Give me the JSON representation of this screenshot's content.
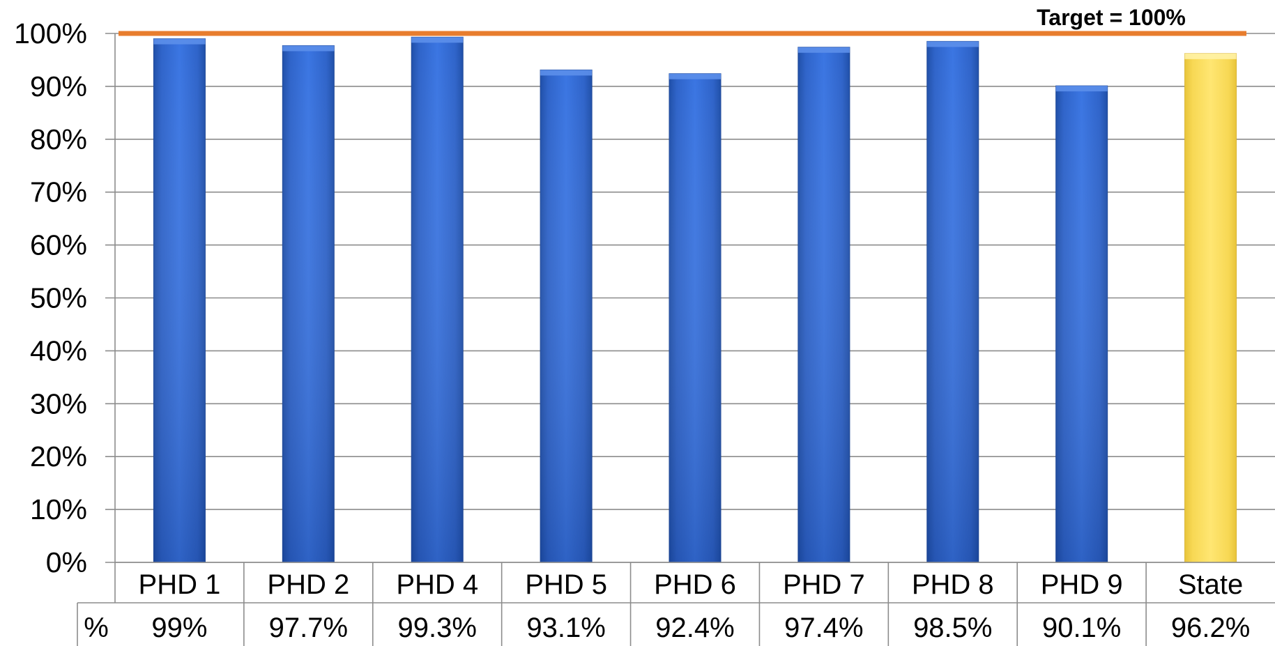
{
  "chart_data": {
    "type": "bar",
    "categories": [
      "PHD 1",
      "PHD 2",
      "PHD 4",
      "PHD 5",
      "PHD 6",
      "PHD 7",
      "PHD 8",
      "PHD 9",
      "State"
    ],
    "values": [
      99,
      97.7,
      99.3,
      93.1,
      92.4,
      97.4,
      98.5,
      90.1,
      96.2
    ],
    "value_labels": [
      "99%",
      "97.7%",
      "99.3%",
      "93.1%",
      "92.4%",
      "97.4%",
      "98.5%",
      "90.1%",
      "96.2%"
    ],
    "y_ticks": [
      "0%",
      "10%",
      "20%",
      "30%",
      "40%",
      "50%",
      "60%",
      "70%",
      "80%",
      "90%",
      "100%"
    ],
    "ylim": [
      0,
      100
    ],
    "grid": true,
    "table_row_label": "%",
    "target": {
      "value": 100,
      "label": "Target = 100%",
      "color": "#E87D2E"
    },
    "colors": {
      "bar": "#2F67D6",
      "highlight": "#FFE066"
    },
    "highlight_category": "State"
  }
}
